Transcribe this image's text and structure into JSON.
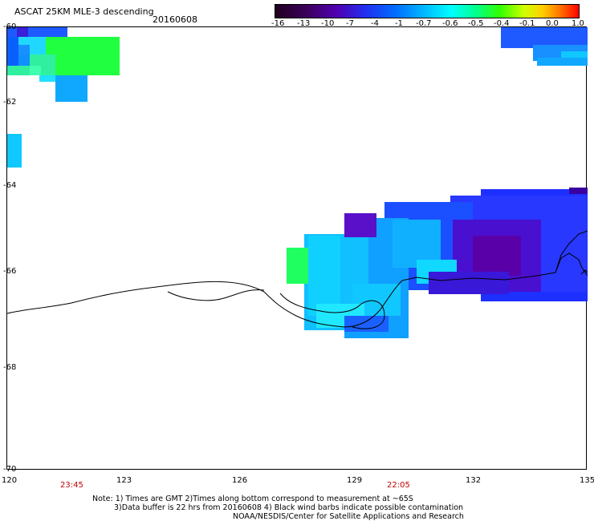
{
  "header": {
    "title": "ASCAT 25KM MLE-3 descending",
    "date": "20160608"
  },
  "colorbar": {
    "labels": [
      "-16",
      "-13",
      "-10",
      "-7",
      "-4",
      "-1",
      "-0.7",
      "-0.6",
      "-0.5",
      "-0.4",
      "-0.1",
      "0.0",
      "1.0"
    ],
    "colors": [
      "#200020",
      "#4a0058",
      "#5a00b0",
      "#2030f0",
      "#0060ff",
      "#00b0ff",
      "#00ffff",
      "#00ff90",
      "#20ff00",
      "#c0ff00",
      "#ffd000",
      "#ff6000",
      "#ff0000"
    ]
  },
  "axes": {
    "lat_labels": [
      "-60",
      "-62",
      "-64",
      "-66",
      "-68",
      "-70"
    ],
    "lon_labels": [
      "120",
      "123",
      "126",
      "129",
      "132",
      "135"
    ],
    "time_labels": [
      "23:45",
      "22:05"
    ]
  },
  "notes": {
    "line1": "Note: 1) Times are GMT 2)Times along bottom correspond to measurement at ~65S",
    "line2": "3)Data buffer is 22 hrs from 20160608 4) Black wind barbs indicate possible contamination",
    "line3": "NOAA/NESDIS/Center for Satellite Applications and Research"
  }
}
